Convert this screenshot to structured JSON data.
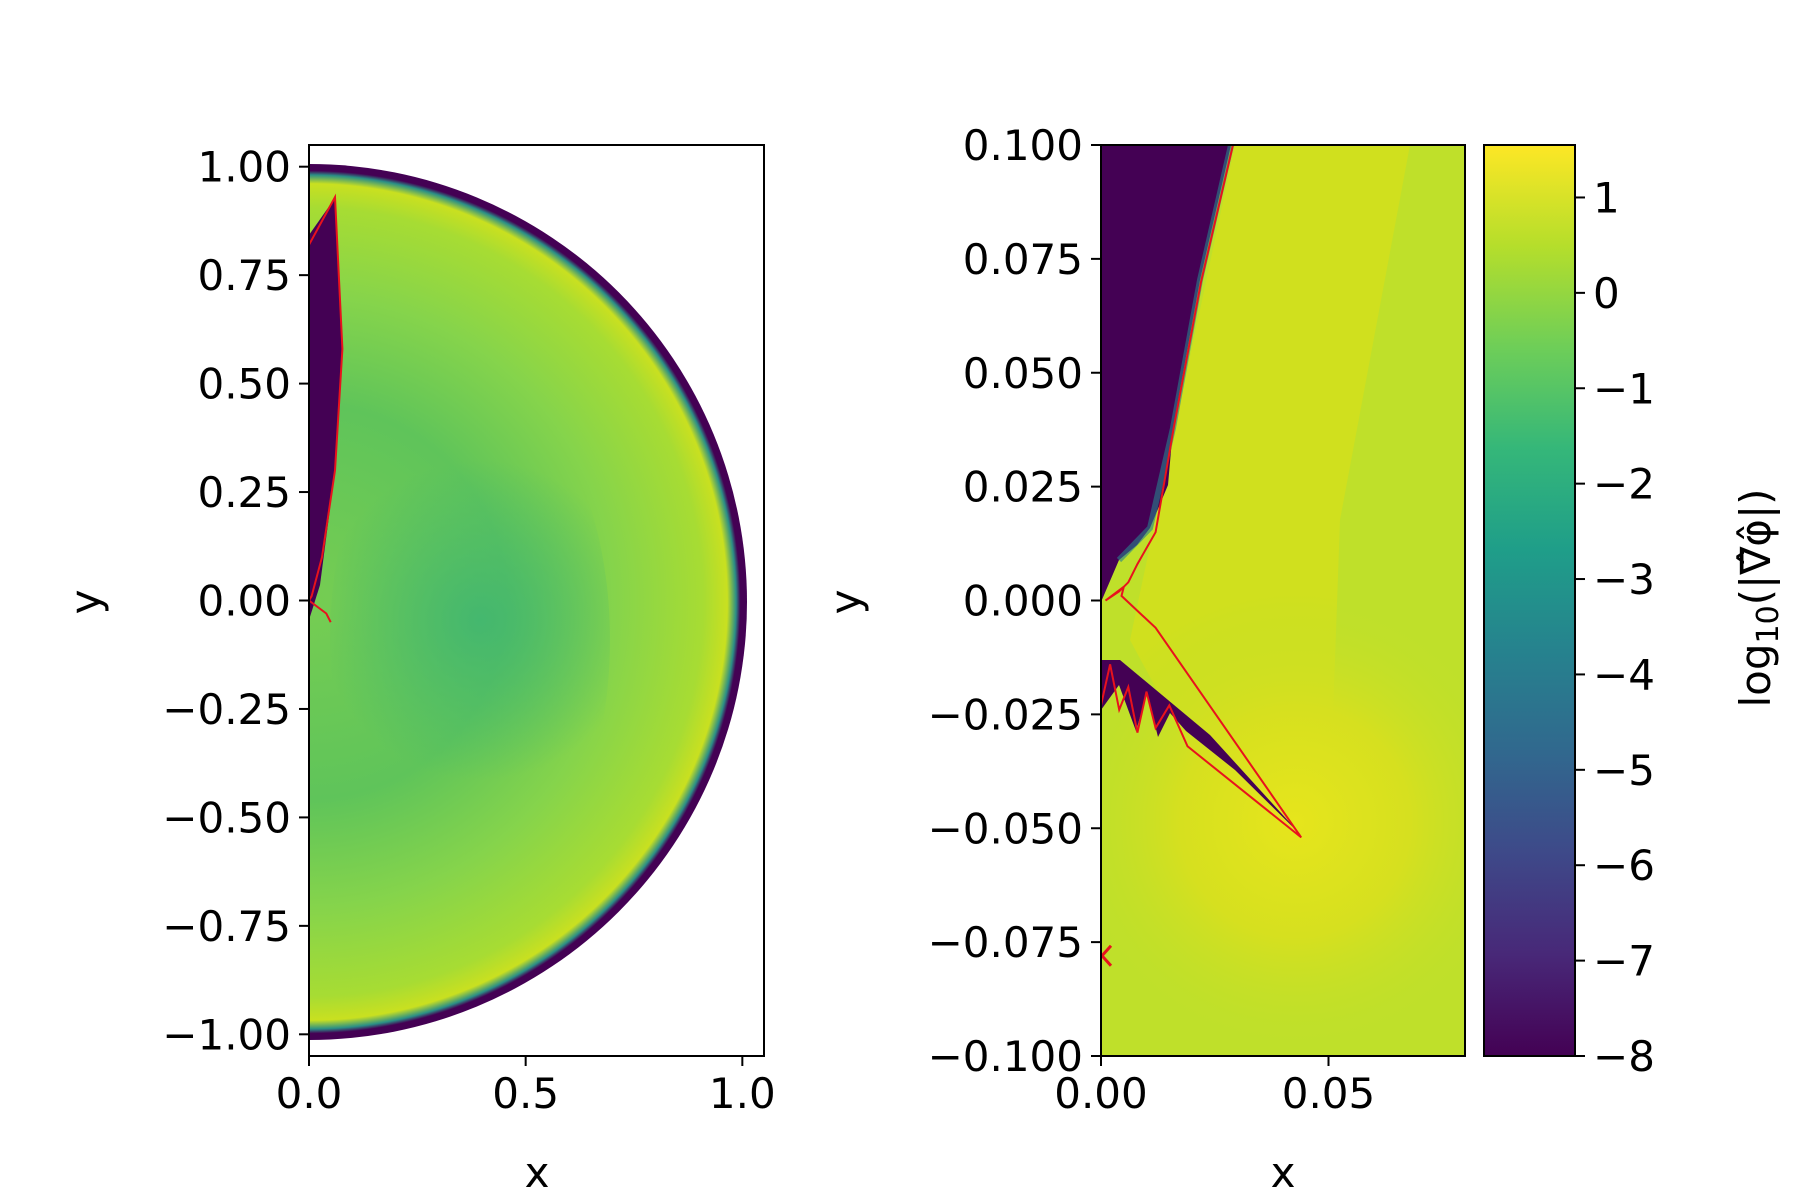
{
  "chart_data": [
    {
      "type": "heatmap",
      "panel": "left",
      "xlabel": "x",
      "ylabel": "y",
      "xlim": [
        0.0,
        1.05
      ],
      "ylim": [
        -1.05,
        1.05
      ],
      "xticks": [
        "0.0",
        "0.5",
        "1.0"
      ],
      "yticks": [
        "1.00",
        "0.75",
        "0.50",
        "0.25",
        "0.00",
        "−0.25",
        "−0.50",
        "−0.75",
        "−1.00"
      ],
      "domain": "half-disk of radius 1 with outer shell to radius 1.05",
      "contour_line": {
        "color": "#e8121d",
        "points": [
          [
            0.0,
            0.82
          ],
          [
            0.06,
            0.93
          ],
          [
            0.077,
            0.58
          ],
          [
            0.06,
            0.3
          ],
          [
            0.03,
            0.1
          ],
          [
            0.006,
            0.01
          ],
          [
            0.0,
            0.0
          ],
          [
            0.04,
            -0.03
          ],
          [
            0.05,
            -0.05
          ]
        ]
      }
    },
    {
      "type": "heatmap",
      "panel": "right",
      "xlabel": "x",
      "ylabel": "y",
      "xlim": [
        0.0,
        0.08
      ],
      "ylim": [
        -0.1,
        0.1
      ],
      "xticks": [
        "0.00",
        "0.05"
      ],
      "yticks": [
        "0.100",
        "0.075",
        "0.050",
        "0.025",
        "0.000",
        "−0.025",
        "−0.050",
        "−0.075",
        "−0.100"
      ],
      "contour_line": {
        "color": "#e8121d",
        "points": [
          [
            0.029,
            0.1
          ],
          [
            0.022,
            0.07
          ],
          [
            0.016,
            0.038
          ],
          [
            0.012,
            0.015
          ],
          [
            0.008,
            0.008
          ],
          [
            0.006,
            0.004
          ],
          [
            0.004,
            0.002
          ],
          [
            0.001,
            0.0
          ],
          [
            0.005,
            0.003
          ],
          [
            0.0045,
            0.001
          ],
          [
            0.012,
            -0.006
          ],
          [
            0.044,
            -0.052
          ],
          [
            0.019,
            -0.032
          ],
          [
            0.015,
            -0.023
          ],
          [
            0.012,
            -0.028
          ],
          [
            0.01,
            -0.02
          ],
          [
            0.008,
            -0.029
          ],
          [
            0.006,
            -0.019
          ],
          [
            0.004,
            -0.024
          ],
          [
            0.002,
            -0.014
          ],
          [
            0.0,
            -0.023
          ]
        ]
      },
      "marker": {
        "x": 0.0,
        "y": -0.078,
        "color": "#e8121d"
      }
    }
  ],
  "colorbar": {
    "label_main": "log",
    "label_sub": "10",
    "label_tail": "(|∇̂φ̂|)",
    "ticks": [
      "1",
      "0",
      "−1",
      "−2",
      "−3",
      "−4",
      "−5",
      "−6",
      "−7",
      "−8"
    ],
    "range": [
      -8,
      1.55
    ],
    "colormap": "viridis",
    "colors": [
      "#440154",
      "#482878",
      "#3e4989",
      "#31688e",
      "#26828e",
      "#1f9e89",
      "#35b779",
      "#6ece58",
      "#b5de2b",
      "#fde725"
    ]
  }
}
